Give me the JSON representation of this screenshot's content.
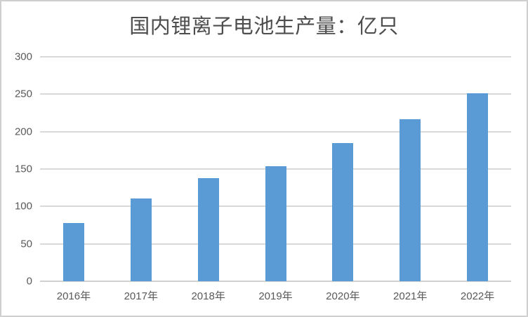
{
  "chart_data": {
    "type": "bar",
    "title": "国内锂离子电池生产量：亿只",
    "categories": [
      "2016年",
      "2017年",
      "2018年",
      "2019年",
      "2020年",
      "2021年",
      "2022年"
    ],
    "values": [
      78,
      111,
      138,
      154,
      185,
      217,
      251
    ],
    "xlabel": "",
    "ylabel": "",
    "ylim": [
      0,
      300
    ],
    "yticks": [
      0,
      50,
      100,
      150,
      200,
      250,
      300
    ],
    "grid": true,
    "legend_position": "none",
    "colors": {
      "bar": "#5b9bd5",
      "gridline": "#d9d9d9",
      "axis_line": "#d0d0d0",
      "tick_label": "#595959",
      "title": "#4d4d4d",
      "background": "#ffffff",
      "border": "#cfcfcf"
    }
  }
}
